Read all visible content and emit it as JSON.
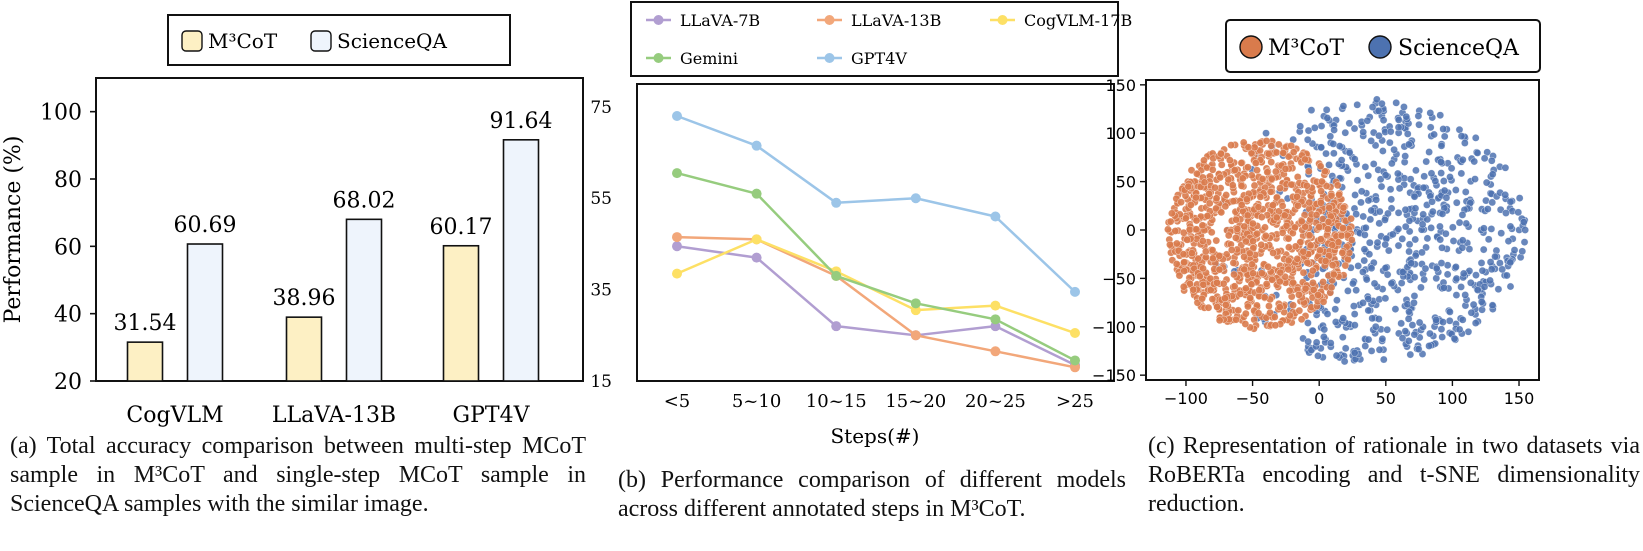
{
  "chart_data": [
    {
      "type": "bar",
      "categories": [
        "CogVLM",
        "LLaVA-13B",
        "GPT4V"
      ],
      "series": [
        {
          "name": "M³CoT",
          "values": [
            31.54,
            38.96,
            60.17
          ],
          "color": "#fdf0c4",
          "labels": [
            "31.54",
            "38.96",
            "60.17"
          ]
        },
        {
          "name": "ScienceQA",
          "values": [
            60.69,
            68.02,
            91.64
          ],
          "color": "#eef4fc",
          "labels": [
            "60.69",
            "68.02",
            "91.64"
          ]
        }
      ],
      "ylabel": "Performance (%)",
      "ylim": [
        20,
        110
      ],
      "yticks": [
        "20",
        "40",
        "60",
        "80",
        "100"
      ],
      "legend": "top",
      "caption": "(a) Total accuracy comparison between multi-step MCoT sample in M³CoT and single-step MCoT sample in ScienceQA samples with the similar image."
    },
    {
      "type": "line",
      "categories": [
        "<5",
        "5~10",
        "10~15",
        "15~20",
        "20~25",
        ">25"
      ],
      "series": [
        {
          "name": "LLaVA-7B",
          "color": "#b19ed1",
          "values": [
            44.5,
            42,
            27,
            25,
            27,
            18.5
          ]
        },
        {
          "name": "LLaVA-13B",
          "color": "#f2a77a",
          "values": [
            46.5,
            46,
            38,
            25,
            21.5,
            18
          ]
        },
        {
          "name": "CogVLM-17B",
          "color": "#fde065",
          "values": [
            38.5,
            46,
            39,
            30.5,
            31.5,
            25.5
          ]
        },
        {
          "name": "Gemini",
          "color": "#96cc7e",
          "values": [
            60.5,
            56,
            38,
            32,
            28.5,
            19.5
          ]
        },
        {
          "name": "GPT4V",
          "color": "#9cc5e8",
          "values": [
            73,
            66.5,
            54,
            55,
            51,
            34.5
          ]
        }
      ],
      "xlabel": "Steps(#)",
      "ylim": [
        15,
        80
      ],
      "yticks": [
        "15",
        "35",
        "55",
        "75"
      ],
      "legend": "top",
      "caption": "(b) Performance comparison of different models across different annotated steps in M³CoT."
    },
    {
      "type": "scatter",
      "series": [
        {
          "name": "M³CoT",
          "color": "#d97b4c"
        },
        {
          "name": "ScienceQA",
          "color": "#4d72b0"
        }
      ],
      "xlim": [
        -130,
        165
      ],
      "ylim": [
        -155,
        155
      ],
      "xticks": [
        "−100",
        "−50",
        "0",
        "50",
        "100",
        "150"
      ],
      "yticks": [
        "150",
        "100",
        "50",
        "0",
        "−50",
        "−100",
        "−150"
      ],
      "legend": "top",
      "caption": "(c) Representation of rationale in two datasets via RoBERTa encoding and t-SNE dimensionality reduction."
    }
  ]
}
